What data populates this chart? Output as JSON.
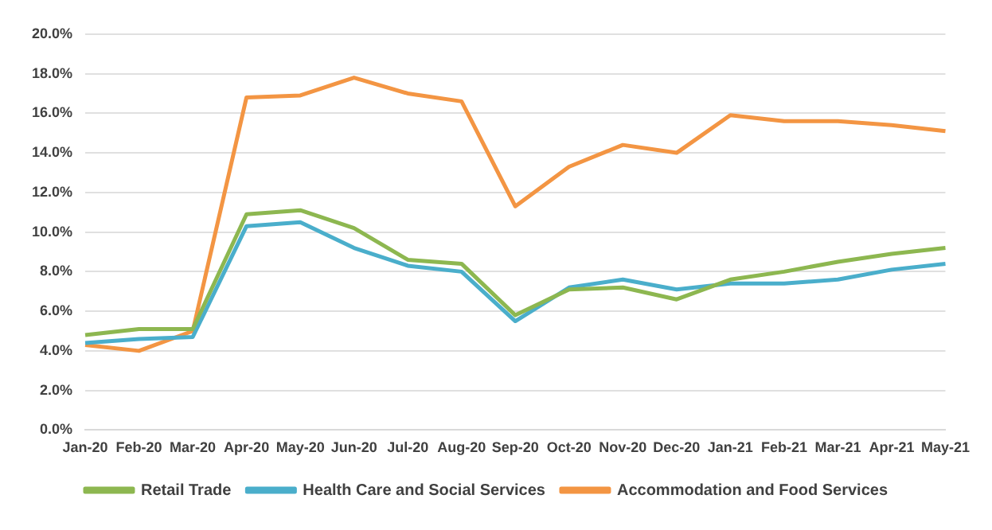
{
  "chart_data": {
    "type": "line",
    "categories": [
      "Jan-20",
      "Feb-20",
      "Mar-20",
      "Apr-20",
      "May-20",
      "Jun-20",
      "Jul-20",
      "Aug-20",
      "Sep-20",
      "Oct-20",
      "Nov-20",
      "Dec-20",
      "Jan-21",
      "Feb-21",
      "Mar-21",
      "Apr-21",
      "May-21"
    ],
    "series": [
      {
        "name": "Retail Trade",
        "color": "#8db750",
        "values": [
          4.8,
          5.1,
          5.1,
          10.9,
          11.1,
          10.2,
          8.6,
          8.4,
          5.8,
          7.1,
          7.2,
          6.6,
          7.6,
          8.0,
          8.5,
          8.9,
          9.2
        ]
      },
      {
        "name": "Health Care and Social Services",
        "color": "#4aaecb",
        "values": [
          4.4,
          4.6,
          4.7,
          10.3,
          10.5,
          9.2,
          8.3,
          8.0,
          5.5,
          7.2,
          7.6,
          7.1,
          7.4,
          7.4,
          7.6,
          8.1,
          8.4
        ]
      },
      {
        "name": "Accommodation and Food Services",
        "color": "#f39543",
        "values": [
          4.3,
          4.0,
          5.0,
          16.8,
          16.9,
          17.8,
          17.0,
          16.6,
          11.3,
          13.3,
          14.4,
          14.0,
          15.9,
          15.6,
          15.6,
          15.4,
          15.1
        ]
      }
    ],
    "ylim": [
      0,
      20
    ],
    "yticks": [
      {
        "value": 0,
        "label": "0.0%"
      },
      {
        "value": 2,
        "label": "2.0%"
      },
      {
        "value": 4,
        "label": "4.0%"
      },
      {
        "value": 6,
        "label": "6.0%"
      },
      {
        "value": 8,
        "label": "8.0%"
      },
      {
        "value": 10,
        "label": "10.0%"
      },
      {
        "value": 12,
        "label": "12.0%"
      },
      {
        "value": 14,
        "label": "14.0%"
      },
      {
        "value": 16,
        "label": "16.0%"
      },
      {
        "value": 18,
        "label": "18.0%"
      },
      {
        "value": 20,
        "label": "20.0%"
      }
    ],
    "grid": "y",
    "legend": "bottom",
    "marker": "none",
    "line_style": "solid"
  }
}
